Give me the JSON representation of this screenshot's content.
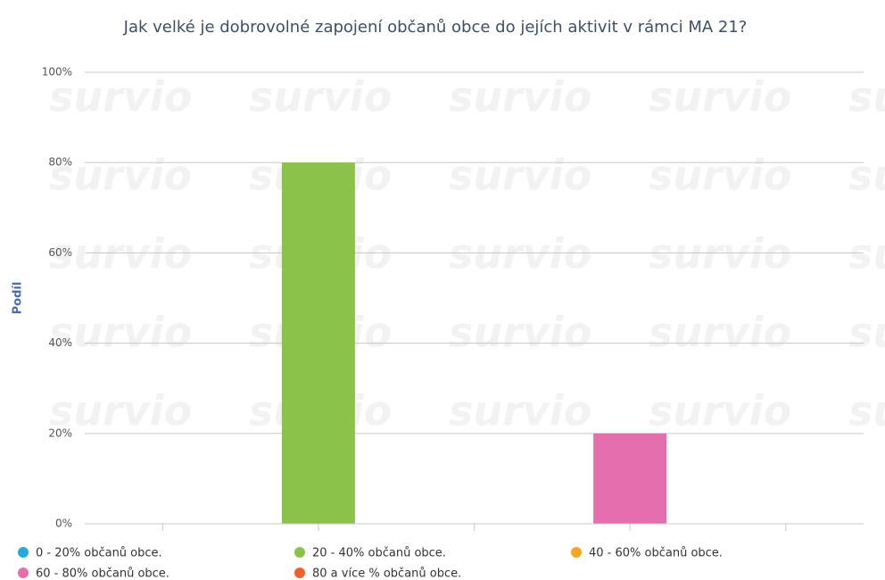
{
  "chart_data": {
    "type": "bar",
    "title": "Jak velké je dobrovolné zapojení občanů obce do jejích aktivit v rámci MA 21?",
    "ylabel": "Podíl",
    "watermark": "survio",
    "series": [
      {
        "name": "0 - 20% občanů obce.",
        "color": "#29a8e0",
        "values": [
          0
        ]
      },
      {
        "name": "20 - 40% občanů obce.",
        "color": "#8bc34a",
        "values": [
          80
        ]
      },
      {
        "name": "40 - 60% občanů obce.",
        "color": "#f5a623",
        "values": [
          0
        ]
      },
      {
        "name": "60 - 80% občanů obce.",
        "color": "#e56fae",
        "values": [
          20
        ]
      },
      {
        "name": "80 a více % občanů obce.",
        "color": "#f0622b",
        "values": [
          0
        ]
      }
    ],
    "ylim": [
      0,
      100
    ],
    "yticks": [
      {
        "value": 0,
        "label": "0%"
      },
      {
        "value": 20,
        "label": "20%"
      },
      {
        "value": 40,
        "label": "40%"
      },
      {
        "value": 60,
        "label": "60%"
      },
      {
        "value": 80,
        "label": "80%"
      },
      {
        "value": 100,
        "label": "100%"
      }
    ],
    "grid": true
  }
}
